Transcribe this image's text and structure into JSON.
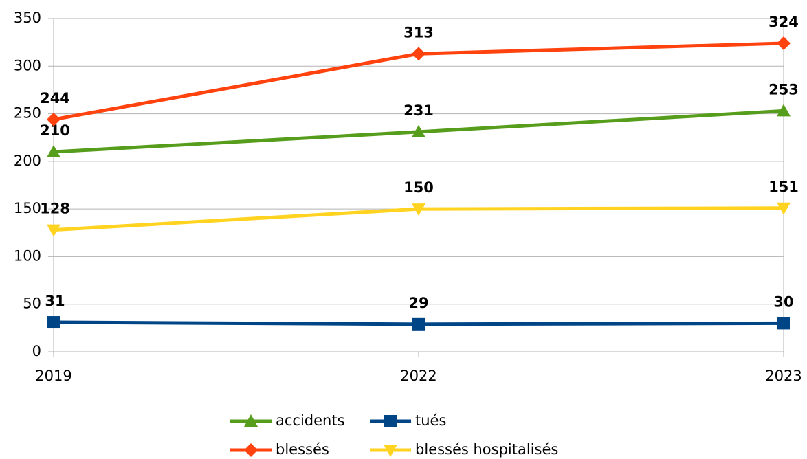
{
  "chart_data": {
    "type": "line",
    "categories": [
      "2019",
      "2022",
      "2023"
    ],
    "series": [
      {
        "name": "accidents",
        "color": "#579d1c",
        "marker": "triangle-up",
        "values": [
          210,
          231,
          253
        ]
      },
      {
        "name": "tués",
        "color": "#004586",
        "marker": "square",
        "values": [
          31,
          29,
          30
        ]
      },
      {
        "name": "blessés",
        "color": "#ff420e",
        "marker": "diamond",
        "values": [
          244,
          313,
          324
        ]
      },
      {
        "name": "blessés hospitalisés",
        "color": "#ffd320",
        "marker": "triangle-down",
        "values": [
          128,
          150,
          151
        ]
      }
    ],
    "ylim": [
      0,
      350
    ],
    "yticks": [
      0,
      50,
      100,
      150,
      200,
      250,
      300,
      350
    ],
    "grid": true
  }
}
